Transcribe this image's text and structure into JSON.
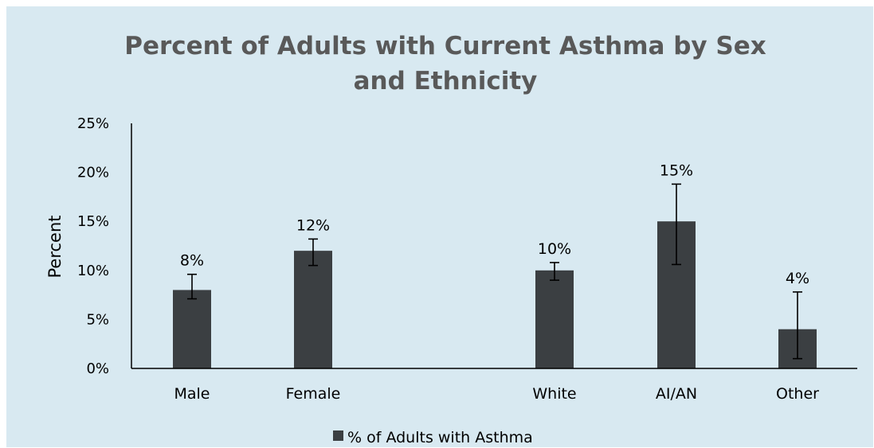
{
  "chart_data": {
    "type": "bar",
    "title_lines": [
      "Percent of Adults with Current Asthma by Sex",
      "and Ethnicity"
    ],
    "ylabel": "Percent",
    "xlabel": "",
    "ylim": [
      0,
      25
    ],
    "yticks": [
      "0%",
      "5%",
      "10%",
      "15%",
      "20%",
      "25%"
    ],
    "categories": [
      "Male",
      "Female",
      "White",
      "AI/AN",
      "Other"
    ],
    "series": [
      {
        "name": "% of Adults with Asthma",
        "values": [
          8,
          12,
          10,
          15,
          4
        ],
        "data_labels": [
          "8%",
          "12%",
          "10%",
          "15%",
          "4%"
        ],
        "error_low": [
          7.1,
          10.5,
          9.0,
          10.6,
          1.0
        ],
        "error_high": [
          9.6,
          13.2,
          10.8,
          18.8,
          7.8
        ],
        "color": "#3b3f42"
      }
    ],
    "grid": false,
    "legend_position": "bottom",
    "background_color": "#d8e9f1",
    "title_color": "#595959"
  }
}
